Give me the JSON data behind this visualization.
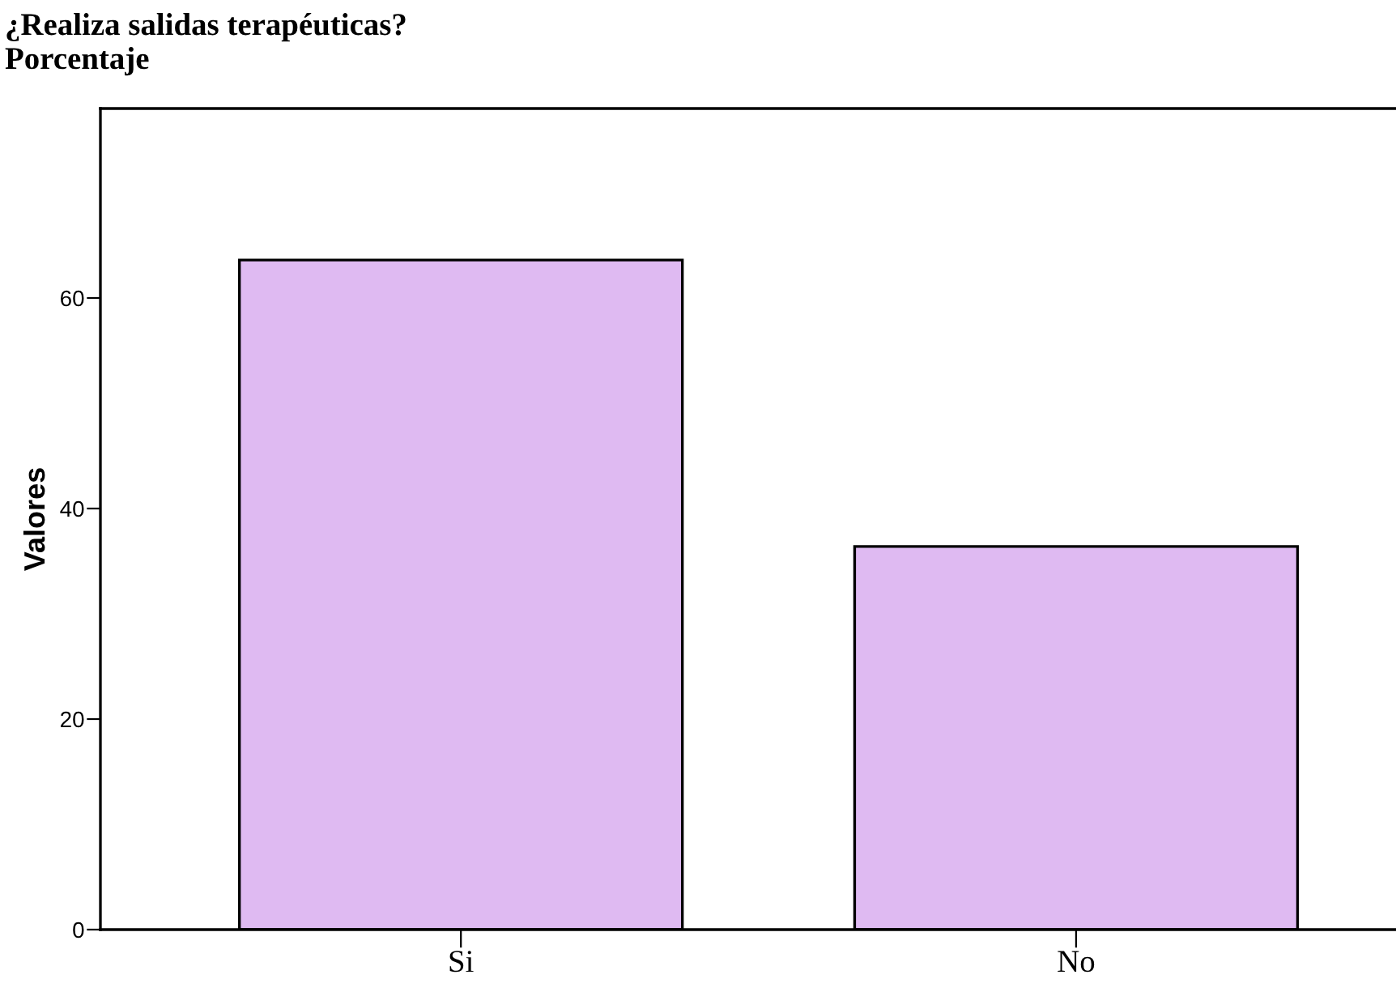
{
  "chart_data": {
    "type": "bar",
    "title": "¿Realiza salidas terapéuticas?",
    "subtitle": "Porcentaje",
    "ylabel": "Valores",
    "categories": [
      "Si",
      "No"
    ],
    "values": [
      63.6,
      36.4
    ],
    "color": "#dfbaf2",
    "ylim": [
      0,
      78
    ],
    "yticks": [
      0,
      20,
      40,
      60
    ],
    "grid": false,
    "legend": false
  }
}
